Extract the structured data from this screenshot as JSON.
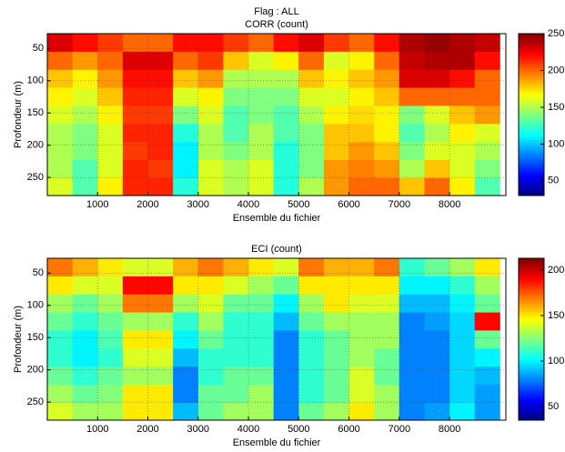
{
  "chart_data": [
    {
      "type": "heatmap",
      "suptitle": "Flag : ALL",
      "title": "CORR (count)",
      "xlabel": "Ensemble du fichier",
      "ylabel": "Profondeur (m)",
      "colormap": "jet",
      "grid": true,
      "xlim": [
        0,
        9120
      ],
      "xticks": [
        1000,
        2000,
        3000,
        4000,
        5000,
        6000,
        7000,
        8000
      ],
      "ylim": [
        278,
        27
      ],
      "yticks": [
        50,
        100,
        150,
        200,
        250
      ],
      "clim": [
        30,
        250
      ],
      "cticks": [
        50,
        100,
        150,
        200,
        250
      ],
      "x_edges": [
        0,
        500,
        1000,
        1500,
        2000,
        2500,
        3000,
        3500,
        4000,
        4500,
        5000,
        5500,
        6000,
        6500,
        7000,
        7500,
        8000,
        8500,
        9000
      ],
      "y_edges": [
        27,
        55,
        83,
        111,
        139,
        167,
        195,
        223,
        251,
        278
      ],
      "z": [
        [
          230,
          220,
          210,
          200,
          200,
          220,
          220,
          210,
          200,
          220,
          230,
          210,
          200,
          220,
          240,
          245,
          240,
          235
        ],
        [
          200,
          190,
          200,
          230,
          230,
          200,
          210,
          180,
          160,
          170,
          200,
          160,
          170,
          200,
          235,
          240,
          240,
          220
        ],
        [
          180,
          170,
          190,
          220,
          220,
          180,
          190,
          150,
          150,
          150,
          180,
          170,
          180,
          190,
          230,
          230,
          220,
          200
        ],
        [
          170,
          160,
          180,
          215,
          215,
          160,
          170,
          140,
          140,
          140,
          160,
          160,
          170,
          180,
          200,
          200,
          200,
          200
        ],
        [
          160,
          150,
          170,
          210,
          210,
          140,
          160,
          130,
          140,
          130,
          150,
          170,
          175,
          170,
          140,
          160,
          180,
          190
        ],
        [
          150,
          140,
          160,
          215,
          215,
          120,
          150,
          130,
          150,
          130,
          140,
          180,
          180,
          170,
          130,
          150,
          170,
          160
        ],
        [
          150,
          140,
          160,
          210,
          215,
          110,
          150,
          140,
          150,
          120,
          140,
          180,
          190,
          180,
          140,
          160,
          160,
          150
        ],
        [
          150,
          130,
          160,
          215,
          210,
          110,
          160,
          150,
          160,
          120,
          140,
          190,
          195,
          190,
          150,
          180,
          160,
          140
        ],
        [
          160,
          130,
          170,
          215,
          215,
          120,
          160,
          150,
          160,
          120,
          150,
          190,
          200,
          200,
          180,
          200,
          170,
          130
        ]
      ]
    },
    {
      "type": "heatmap",
      "title": "ECI (count)",
      "xlabel": "Ensemble du fichier",
      "ylabel": "Profondeur (m)",
      "colormap": "jet",
      "grid": true,
      "xlim": [
        0,
        9120
      ],
      "xticks": [
        1000,
        2000,
        3000,
        4000,
        5000,
        6000,
        7000,
        8000
      ],
      "ylim": [
        278,
        27
      ],
      "yticks": [
        50,
        100,
        150,
        200,
        250
      ],
      "clim": [
        35,
        213
      ],
      "cticks": [
        50,
        100,
        150,
        200
      ],
      "x_edges": [
        0,
        500,
        1000,
        1500,
        2000,
        2500,
        3000,
        3500,
        4000,
        4500,
        5000,
        5500,
        6000,
        6500,
        7000,
        7500,
        8000,
        8500,
        9000
      ],
      "y_edges": [
        27,
        55,
        83,
        111,
        139,
        167,
        195,
        223,
        251,
        278
      ],
      "z": [
        [
          170,
          160,
          150,
          140,
          140,
          160,
          170,
          160,
          150,
          140,
          170,
          160,
          160,
          170,
          110,
          120,
          130,
          150
        ],
        [
          150,
          140,
          140,
          190,
          190,
          150,
          150,
          140,
          130,
          120,
          150,
          150,
          150,
          150,
          100,
          100,
          110,
          130
        ],
        [
          130,
          120,
          130,
          170,
          170,
          130,
          140,
          120,
          120,
          100,
          130,
          150,
          140,
          140,
          90,
          90,
          100,
          120
        ],
        [
          120,
          110,
          120,
          130,
          130,
          110,
          130,
          110,
          110,
          90,
          120,
          130,
          130,
          130,
          80,
          85,
          95,
          190
        ],
        [
          110,
          100,
          115,
          150,
          150,
          100,
          120,
          110,
          110,
          80,
          110,
          120,
          130,
          130,
          80,
          80,
          95,
          120
        ],
        [
          110,
          100,
          110,
          140,
          140,
          90,
          110,
          110,
          110,
          80,
          110,
          120,
          130,
          120,
          80,
          80,
          95,
          100
        ],
        [
          120,
          110,
          120,
          130,
          130,
          80,
          110,
          120,
          120,
          80,
          110,
          120,
          140,
          120,
          80,
          80,
          95,
          90
        ],
        [
          130,
          120,
          125,
          150,
          150,
          80,
          120,
          120,
          130,
          80,
          110,
          120,
          140,
          130,
          80,
          80,
          95,
          85
        ],
        [
          140,
          130,
          130,
          150,
          150,
          90,
          120,
          130,
          130,
          80,
          120,
          130,
          150,
          130,
          80,
          85,
          100,
          85
        ]
      ]
    }
  ]
}
